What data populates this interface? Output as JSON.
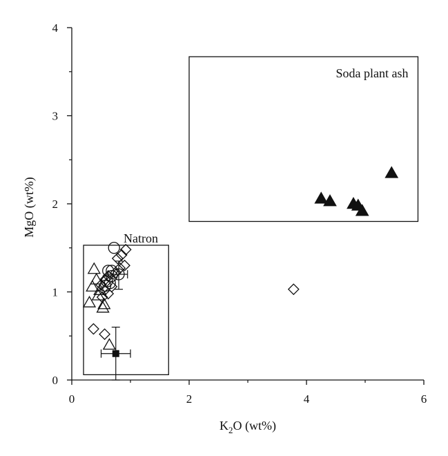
{
  "chart_data": {
    "type": "scatter",
    "xlabel": "K",
    "xlabel_sub": "2",
    "xlabel_rest": "O (wt%)",
    "ylabel": "MgO (wt%)",
    "xlim": [
      0,
      6
    ],
    "ylim": [
      0,
      4
    ],
    "x_ticks": [
      0,
      2,
      4,
      6
    ],
    "x_tick_labels": [
      "0",
      "2",
      "4",
      "6"
    ],
    "y_ticks": [
      0,
      1,
      2,
      3,
      4
    ],
    "y_tick_labels": [
      "0",
      "1",
      "2",
      "3",
      "4"
    ],
    "grid": false,
    "regions": [
      {
        "label": "Natron",
        "x": [
          0.2,
          1.65
        ],
        "y": [
          0.06,
          1.53
        ]
      },
      {
        "label": "Soda plant ash",
        "x": [
          2.0,
          5.9
        ],
        "y": [
          1.8,
          3.67
        ]
      }
    ],
    "series": [
      {
        "marker": "open-diamond",
        "points": [
          [
            0.92,
            1.48
          ],
          [
            0.85,
            1.42
          ],
          [
            0.78,
            1.38
          ],
          [
            0.9,
            1.3
          ],
          [
            0.82,
            1.27
          ],
          [
            0.75,
            1.22
          ],
          [
            0.62,
            1.18
          ],
          [
            0.57,
            1.14
          ],
          [
            0.5,
            1.08
          ],
          [
            0.68,
            1.06
          ],
          [
            0.56,
            1.02
          ],
          [
            0.62,
            0.98
          ],
          [
            0.52,
            0.94
          ],
          [
            0.37,
            0.58
          ],
          [
            0.56,
            0.52
          ],
          [
            3.78,
            1.03
          ]
        ]
      },
      {
        "marker": "open-circle",
        "points": [
          [
            0.72,
            1.5
          ],
          [
            0.62,
            1.24
          ],
          [
            0.68,
            1.24
          ],
          [
            0.8,
            1.2
          ],
          [
            0.68,
            1.18
          ],
          [
            0.6,
            1.12
          ],
          [
            0.65,
            1.1
          ],
          [
            0.57,
            1.07
          ]
        ]
      },
      {
        "marker": "open-triangle",
        "points": [
          [
            0.38,
            1.26
          ],
          [
            0.42,
            1.14
          ],
          [
            0.35,
            1.06
          ],
          [
            0.48,
            1.02
          ],
          [
            0.45,
            0.96
          ],
          [
            0.3,
            0.88
          ],
          [
            0.55,
            0.86
          ],
          [
            0.53,
            0.82
          ],
          [
            0.64,
            0.4
          ]
        ]
      },
      {
        "marker": "filled-triangle",
        "points": [
          [
            4.25,
            2.06
          ],
          [
            4.4,
            2.03
          ],
          [
            4.8,
            2.0
          ],
          [
            4.88,
            1.98
          ],
          [
            4.95,
            1.92
          ],
          [
            5.45,
            2.35
          ]
        ]
      },
      {
        "marker": "filled-square",
        "points": [
          [
            0.75,
            0.3
          ]
        ]
      }
    ],
    "error_bars": [
      {
        "x": 0.75,
        "y": 0.3,
        "x_err": [
          0.5,
          1.0
        ],
        "y_err": [
          0.0,
          0.6
        ]
      },
      {
        "x": 0.8,
        "y": 1.2,
        "x_err": [
          0.62,
          0.95
        ],
        "y_err": [
          1.03,
          1.35
        ]
      }
    ]
  }
}
